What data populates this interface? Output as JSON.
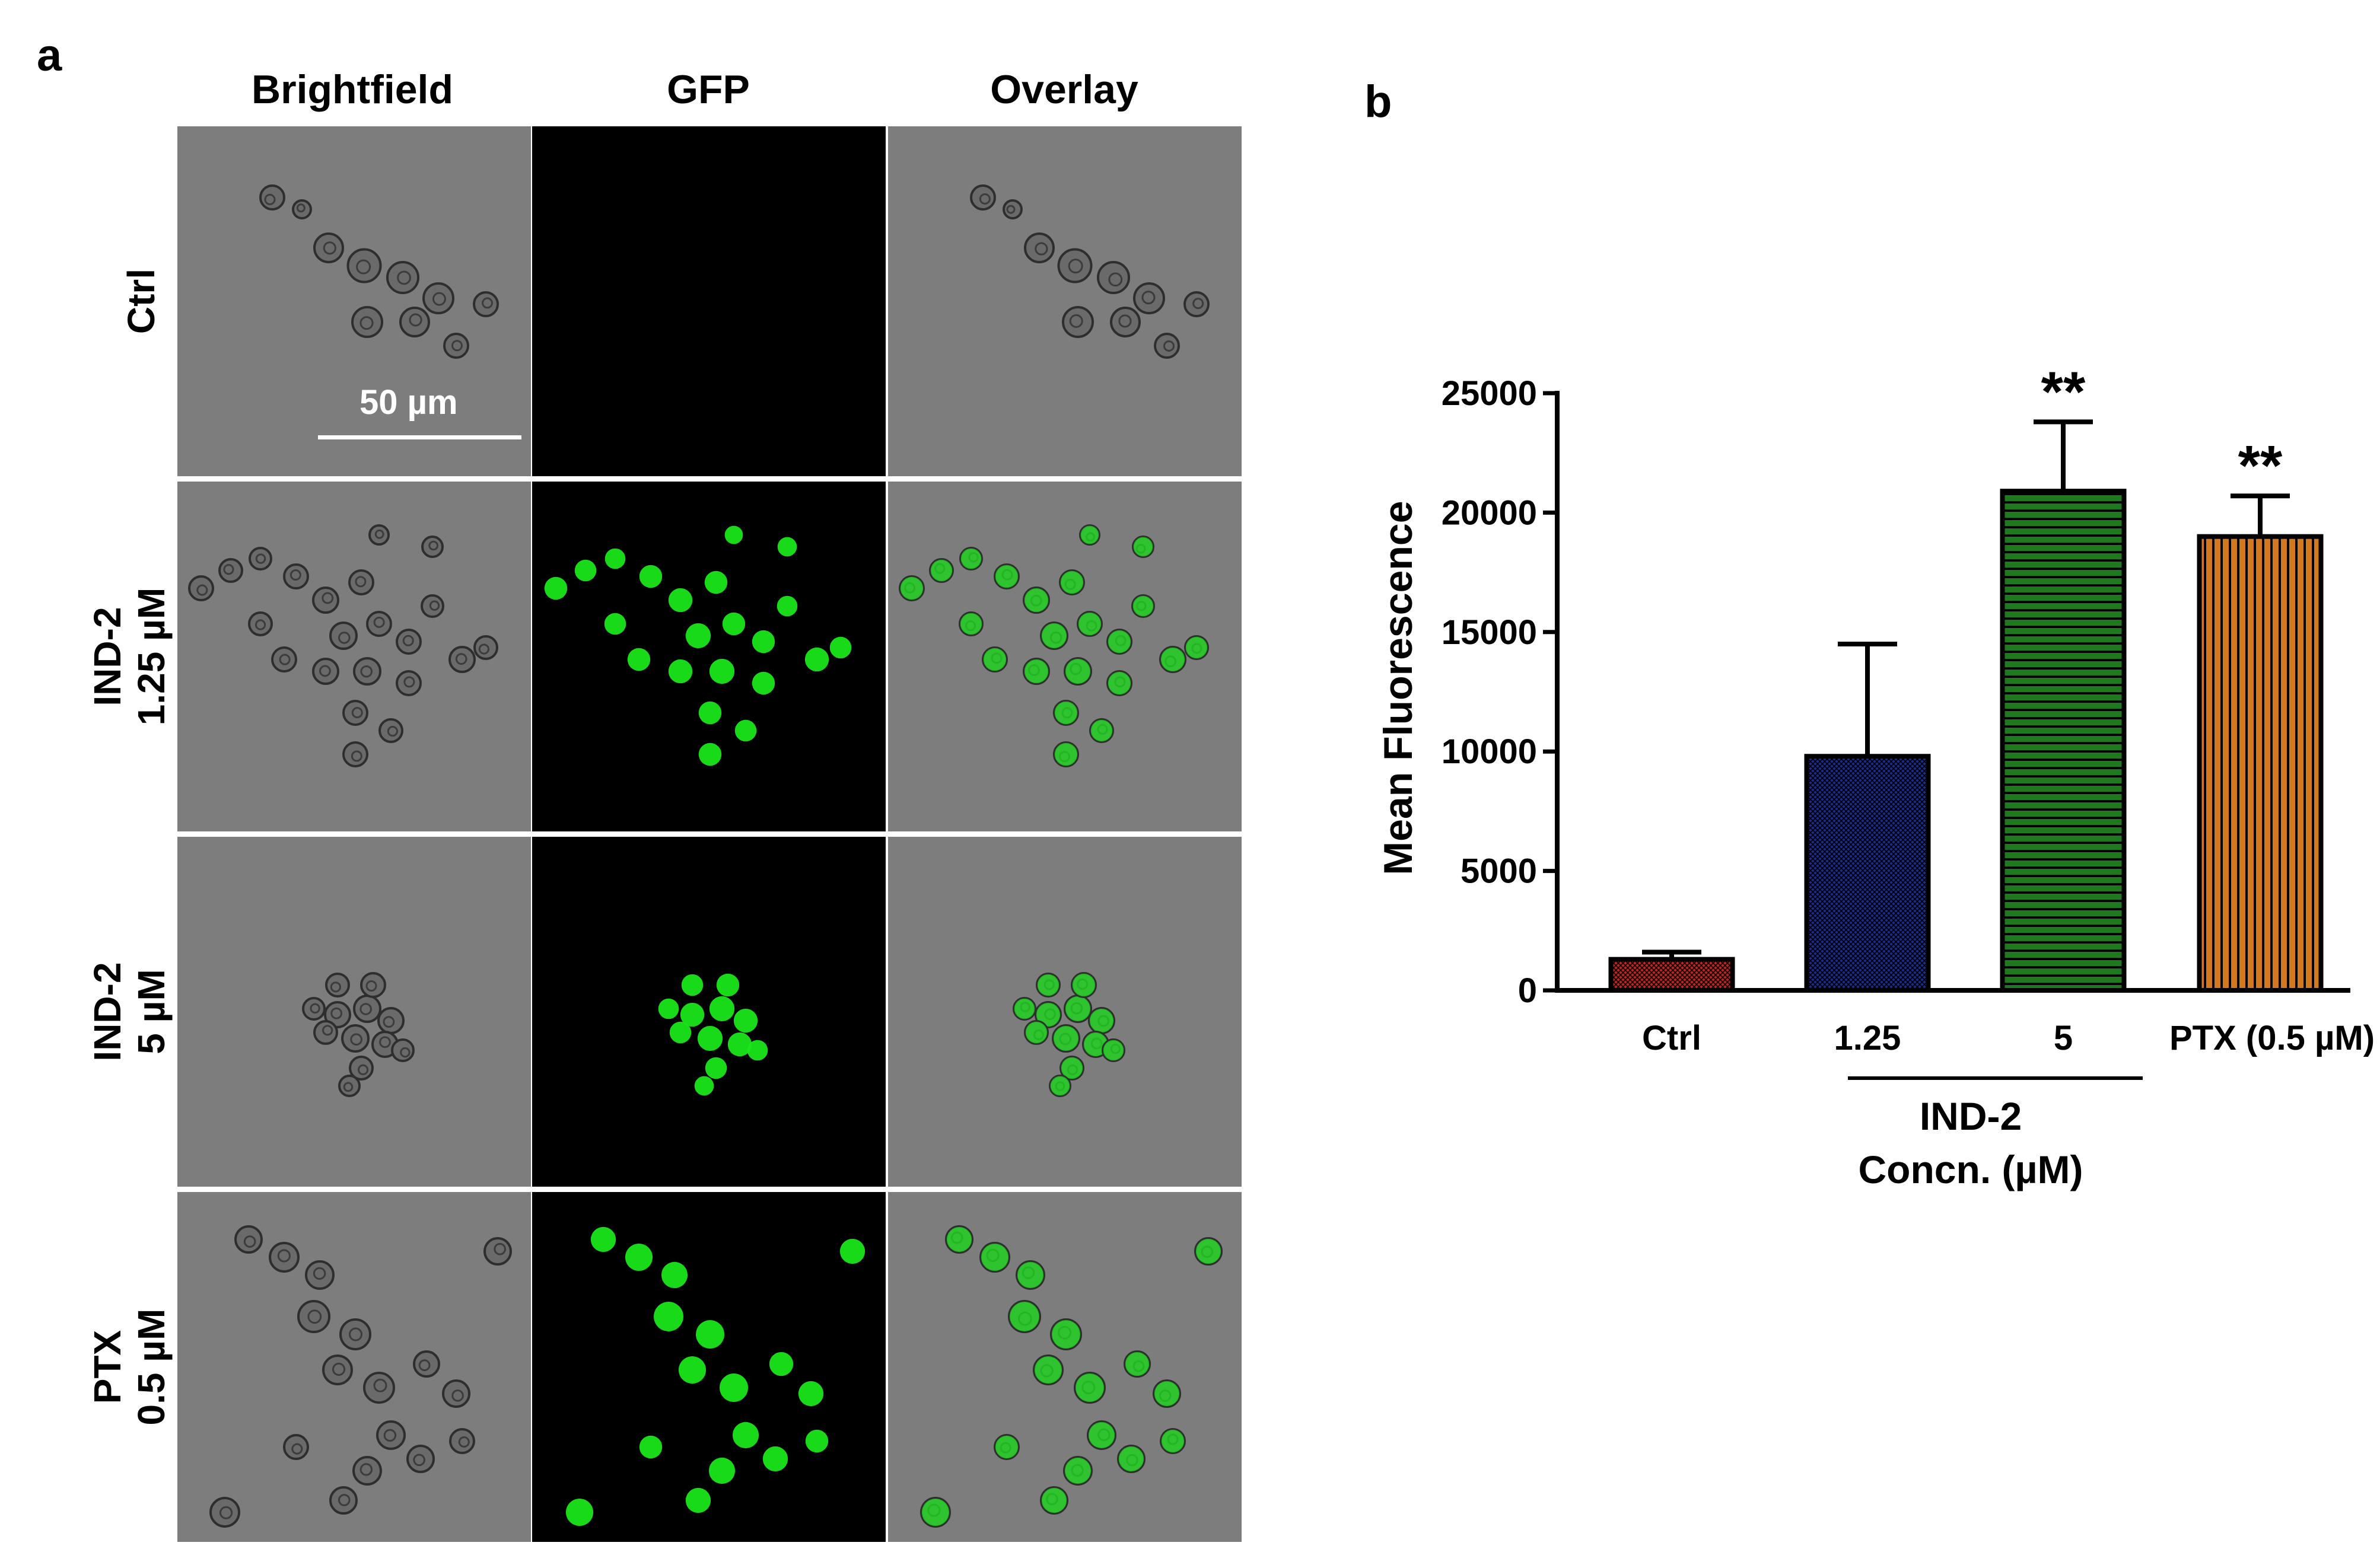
{
  "panel_a": {
    "letter": "a",
    "columns": [
      "Brightfield",
      "GFP",
      "Overlay"
    ],
    "rows": [
      {
        "line1": "Ctrl",
        "line2": "",
        "gfp": "none"
      },
      {
        "line1": "IND-2",
        "line2": "1.25 µM",
        "gfp": "scattered"
      },
      {
        "line1": "IND-2",
        "line2": "5 µM",
        "gfp": "cluster"
      },
      {
        "line1": "PTX",
        "line2": "0.5 µM",
        "gfp": "network"
      }
    ],
    "scale_bar_label": "50 µm",
    "colors": {
      "brightfield": "#7d7d7d",
      "gfp_background": "#000000",
      "gfp": "#19e619"
    }
  },
  "panel_b": {
    "letter": "b"
  },
  "chart_data": {
    "type": "bar",
    "categories": [
      "Ctrl",
      "1.25",
      "5",
      "PTX (0.5 µM)"
    ],
    "values": [
      1300,
      9800,
      20900,
      19000
    ],
    "errors": [
      300,
      4700,
      2900,
      1700
    ],
    "significance": [
      "",
      "",
      "**",
      "**"
    ],
    "colors": [
      "#c0231f",
      "#1c2a8c",
      "#1f7a1f",
      "#d2781e"
    ],
    "patterns": [
      "crosshatch",
      "crosshatch",
      "horizontal",
      "vertical"
    ],
    "ylabel": "Mean Fluorescence",
    "xlabel": "",
    "group_label": {
      "line1": "IND-2",
      "line2": "Concn. (µM)",
      "spans": [
        "1.25",
        "5"
      ]
    },
    "ylim": [
      0,
      25000
    ],
    "yticks": [
      0,
      5000,
      10000,
      15000,
      20000,
      25000
    ],
    "grid": false,
    "legend": "none"
  }
}
